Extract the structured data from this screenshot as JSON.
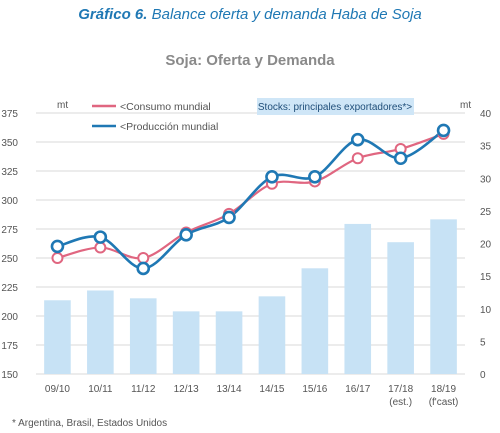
{
  "figure": {
    "label": "Gráfico 6.",
    "caption": "Balance oferta y demanda Haba de Soja"
  },
  "footnote": "* Argentina, Brasil, Estados Unidos",
  "colors": {
    "consumo": "#e06680",
    "produccion": "#1f78b4",
    "bars": "#c7e2f5",
    "legend_box": "#cfe6f7"
  },
  "chart_data": {
    "type": "line",
    "title": "Soja: Oferta y Demanda",
    "categories": [
      "09/10",
      "10/11",
      "11/12",
      "12/13",
      "13/14",
      "14/15",
      "15/16",
      "16/17",
      "17/18",
      "18/19"
    ],
    "category_sublabels": [
      "",
      "",
      "",
      "",
      "",
      "",
      "",
      "",
      "(est.)",
      "(f'cast)"
    ],
    "left_axis": {
      "unit": "mt",
      "ylim": [
        150,
        375
      ],
      "ticks": [
        150,
        175,
        200,
        225,
        250,
        275,
        300,
        325,
        350,
        375
      ]
    },
    "right_axis": {
      "unit": "mt",
      "ylim": [
        0,
        40
      ],
      "ticks": [
        0,
        5,
        10,
        15,
        20,
        25,
        30,
        35,
        40
      ]
    },
    "series": [
      {
        "name": "<Consumo mundial",
        "type": "line",
        "axis": "left",
        "values": [
          250,
          259,
          250,
          272,
          288,
          314,
          316,
          336,
          344,
          357
        ]
      },
      {
        "name": "<Producción mundial",
        "type": "line",
        "axis": "left",
        "values": [
          260,
          268,
          241,
          270,
          285,
          320,
          320,
          352,
          336,
          360
        ]
      },
      {
        "name": "Stocks: principales exportadores*>",
        "type": "bar",
        "axis": "right",
        "values": [
          11.3,
          12.8,
          11.6,
          9.6,
          9.6,
          11.9,
          16.2,
          23.0,
          20.2,
          23.7
        ]
      }
    ],
    "grid": "horizontal",
    "legend": "top"
  }
}
